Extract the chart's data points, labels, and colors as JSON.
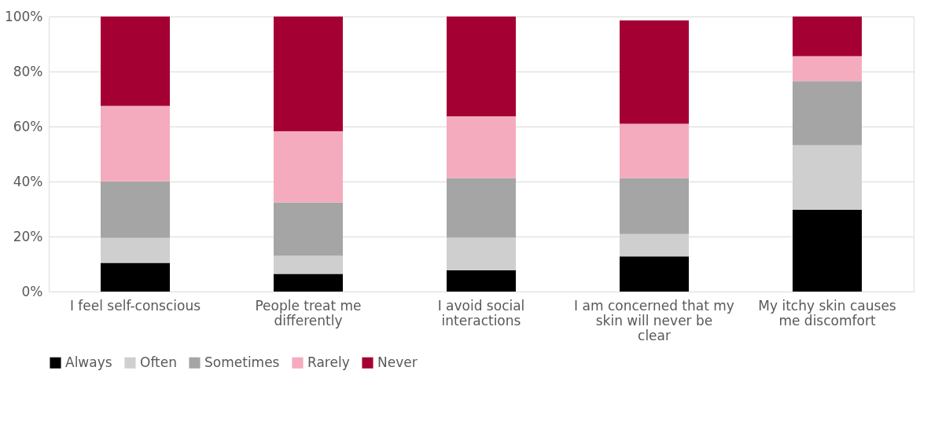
{
  "chart_data": {
    "type": "bar",
    "stacked": true,
    "categories": [
      "I feel self-conscious",
      "People treat me differently",
      "I avoid social interactions",
      "I am concerned that my skin will never be clear",
      "My itchy skin causes me discomfort"
    ],
    "series": [
      {
        "name": "Always",
        "color": "#000000",
        "values": [
          10.4,
          6.4,
          7.7,
          12.8,
          29.7
        ]
      },
      {
        "name": "Often",
        "color": "#d0cfd0",
        "values": [
          9.1,
          6.6,
          11.9,
          8.1,
          23.5
        ]
      },
      {
        "name": "Sometimes",
        "color": "#a5a5a5",
        "values": [
          20.6,
          19.4,
          21.7,
          20.4,
          23.3
        ]
      },
      {
        "name": "Rarely",
        "color": "#f5abbe",
        "values": [
          27.4,
          25.9,
          22.4,
          19.7,
          9.1
        ]
      },
      {
        "name": "Never",
        "color": "#a50034",
        "values": [
          32.5,
          41.7,
          36.3,
          37.6,
          14.4
        ]
      }
    ],
    "ylim": [
      0,
      100
    ],
    "yticks": [
      {
        "value": 0,
        "label": "0%"
      },
      {
        "value": 20,
        "label": "20%"
      },
      {
        "value": 40,
        "label": "40%"
      },
      {
        "value": 60,
        "label": "60%"
      },
      {
        "value": 80,
        "label": "80%"
      },
      {
        "value": 100,
        "label": "100%"
      }
    ],
    "grid": "y",
    "legend": "bottom"
  }
}
